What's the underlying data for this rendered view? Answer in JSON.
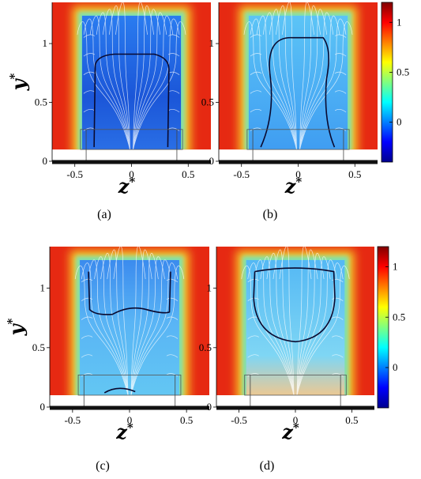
{
  "panels": [
    {
      "id": "a",
      "caption": "(a)",
      "ylabel": "y",
      "ylabel_sup": "*",
      "xlabel": "z",
      "xlabel_sup": "*",
      "contour": "roof",
      "lower_box": true
    },
    {
      "id": "b",
      "caption": "(b)",
      "ylabel": "",
      "ylabel_sup": "",
      "xlabel": "z",
      "xlabel_sup": "*",
      "contour": "tall",
      "lower_box": true
    },
    {
      "id": "c",
      "caption": "(c)",
      "ylabel": "y",
      "ylabel_sup": "*",
      "xlabel": "z",
      "xlabel_sup": "*",
      "contour": "top",
      "lower_box": true
    },
    {
      "id": "d",
      "caption": "(d)",
      "ylabel": "",
      "ylabel_sup": "",
      "xlabel": "z",
      "xlabel_sup": "*",
      "contour": "bowl",
      "lower_box": true
    }
  ],
  "axes": {
    "x_ticks": [
      "-0.5",
      "0",
      "0.5"
    ],
    "x_tick_values": [
      -0.5,
      0,
      0.5
    ],
    "y_ticks": [
      "0",
      "0.5",
      "1"
    ],
    "y_tick_values": [
      0,
      0.5,
      1
    ],
    "xlim": [
      -0.7,
      0.7
    ],
    "ylim": [
      0,
      1.35
    ]
  },
  "colorbar": {
    "ticks": [
      "1",
      "0.5",
      "0"
    ],
    "tick_values": [
      1,
      0.5,
      0
    ],
    "range": [
      -0.4,
      1.2
    ],
    "colormap": "jet"
  },
  "colors": {
    "outer": "#e62912",
    "wall": "#111111",
    "streamline": "#ffffff",
    "contour": "#0a0a30"
  }
}
